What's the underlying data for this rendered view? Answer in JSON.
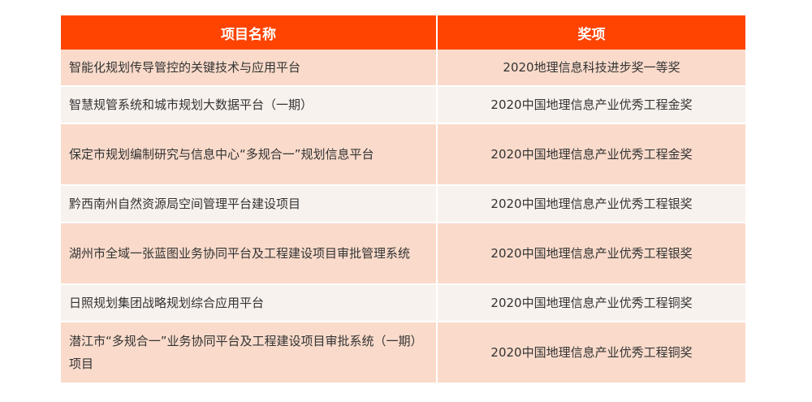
{
  "headers": {
    "name": "项目名称",
    "award": "奖项"
  },
  "colors": {
    "header": "#fe4400",
    "row_odd": "#fadbcb",
    "row_even": "#f8f2ee"
  },
  "rows": [
    {
      "name": "智能化规划传导管控的关键技术与应用平台",
      "award": "2020地理信息科技进步奖一等奖"
    },
    {
      "name": "智慧规管系统和城市规划大数据平台（一期）",
      "award": "2020中国地理信息产业优秀工程金奖"
    },
    {
      "name": "保定市规划编制研究与信息中心“多规合一”规划信息平台",
      "award": "2020中国地理信息产业优秀工程金奖"
    },
    {
      "name": "黔西南州自然资源局空间管理平台建设项目",
      "award": "2020中国地理信息产业优秀工程银奖"
    },
    {
      "name": "湖州市全域一张蓝图业务协同平台及工程建设项目审批管理系统",
      "award": "2020中国地理信息产业优秀工程银奖"
    },
    {
      "name": "日照规划集团战略规划综合应用平台",
      "award": "2020中国地理信息产业优秀工程铜奖"
    },
    {
      "name": "潜江市“多规合一”业务协同平台及工程建设项目审批系统（一期）项目",
      "award": "2020中国地理信息产业优秀工程铜奖"
    }
  ]
}
